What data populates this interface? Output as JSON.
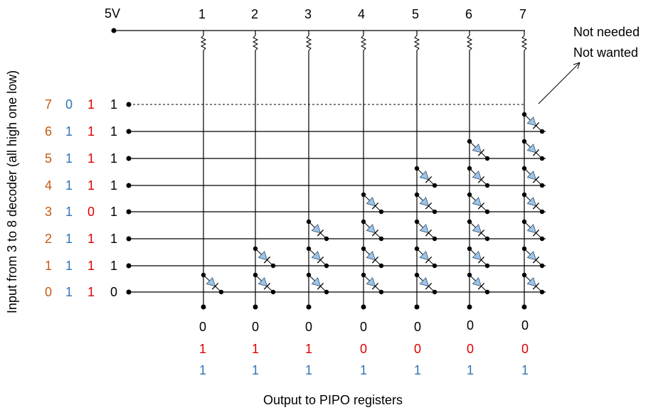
{
  "supply_label": "5V",
  "column_labels": [
    "1",
    "2",
    "3",
    "4",
    "5",
    "6",
    "7"
  ],
  "note_lines": [
    "Not needed",
    "Not wanted"
  ],
  "side_label": "Input from 3 to 8 decoder (all high one low)",
  "bottom_label": "Output to PIPO registers",
  "rows": [
    {
      "index": "7",
      "bits": [
        "0",
        "1",
        "1"
      ]
    },
    {
      "index": "6",
      "bits": [
        "1",
        "1",
        "1"
      ]
    },
    {
      "index": "5",
      "bits": [
        "1",
        "1",
        "1"
      ]
    },
    {
      "index": "4",
      "bits": [
        "1",
        "1",
        "1"
      ]
    },
    {
      "index": "3",
      "bits": [
        "1",
        "0",
        "1"
      ]
    },
    {
      "index": "2",
      "bits": [
        "1",
        "1",
        "1"
      ]
    },
    {
      "index": "1",
      "bits": [
        "1",
        "1",
        "1"
      ]
    },
    {
      "index": "0",
      "bits": [
        "1",
        "1",
        "0"
      ]
    }
  ],
  "outputs": [
    [
      "0",
      "1",
      "1"
    ],
    [
      "0",
      "1",
      "1"
    ],
    [
      "0",
      "1",
      "1"
    ],
    [
      "0",
      "0",
      "1"
    ],
    [
      "0",
      "0",
      "1"
    ],
    [
      "0",
      "0",
      "1"
    ],
    [
      "0",
      "0",
      "1"
    ]
  ],
  "colors": {
    "index": "#c55a11",
    "bit_blue": "#2e75b6",
    "bit_red": "#e00000",
    "wire": "#000000",
    "diode_fill": "#9dc3e6"
  }
}
